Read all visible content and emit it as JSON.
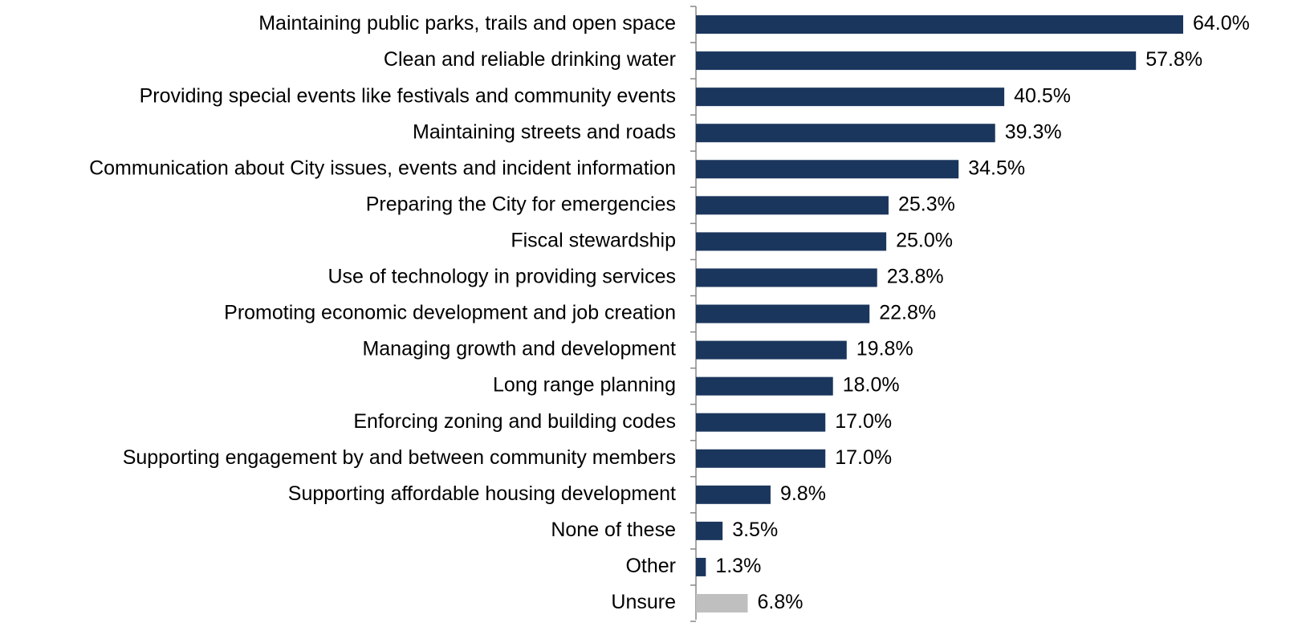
{
  "chart_data": {
    "type": "bar",
    "orientation": "horizontal",
    "categories": [
      "Maintaining public parks, trails and open space",
      "Clean and reliable drinking water",
      "Providing special events like festivals and community events",
      "Maintaining streets and roads",
      "Communication about City issues, events and incident information",
      "Preparing the City for emergencies",
      "Fiscal stewardship",
      "Use of technology in providing services",
      "Promoting economic development and job creation",
      "Managing growth and development",
      "Long range planning",
      "Enforcing zoning and building codes",
      "Supporting engagement by and between community members",
      "Supporting affordable housing development",
      "None of these",
      "Other",
      "Unsure"
    ],
    "values": [
      64.0,
      57.8,
      40.5,
      39.3,
      34.5,
      25.3,
      25.0,
      23.8,
      22.8,
      19.8,
      18.0,
      17.0,
      17.0,
      9.8,
      3.5,
      1.3,
      6.8
    ],
    "value_labels": [
      "64.0%",
      "57.8%",
      "40.5%",
      "39.3%",
      "34.5%",
      "25.3%",
      "25.0%",
      "23.8%",
      "22.8%",
      "19.8%",
      "18.0%",
      "17.0%",
      "17.0%",
      "9.8%",
      "3.5%",
      "1.3%",
      "6.8%"
    ],
    "colors": [
      "#1b365d",
      "#1b365d",
      "#1b365d",
      "#1b365d",
      "#1b365d",
      "#1b365d",
      "#1b365d",
      "#1b365d",
      "#1b365d",
      "#1b365d",
      "#1b365d",
      "#1b365d",
      "#1b365d",
      "#1b365d",
      "#1b365d",
      "#1b365d",
      "#bfbfbf"
    ]
  }
}
